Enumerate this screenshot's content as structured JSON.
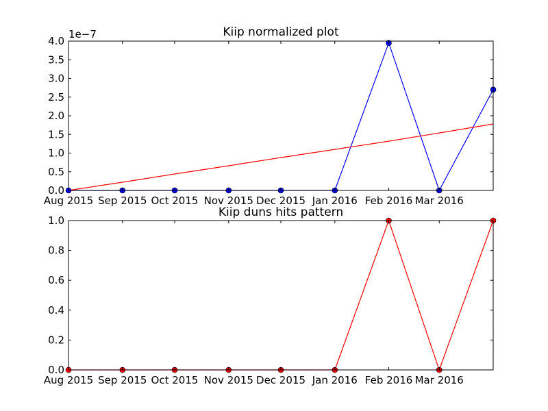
{
  "figure": {
    "background": "#ffffff"
  },
  "chart_data": [
    {
      "type": "line",
      "title": "Kiip normalized plot",
      "xlabel": "",
      "ylabel": "",
      "y_offset_text": "1e−7",
      "x_tick_labels": [
        "Aug 2015",
        "Sep 2015",
        "Oct 2015",
        "Nov 2015",
        "Dec 2015",
        "Jan 2016",
        "Feb 2016",
        "Mar 2016"
      ],
      "y_tick_labels": [
        "0.0",
        "0.5",
        "1.0",
        "1.5",
        "2.0",
        "2.5",
        "3.0",
        "3.5",
        "4.0"
      ],
      "y_tick_values": [
        0.0,
        0.5,
        1.0,
        1.5,
        2.0,
        2.5,
        3.0,
        3.5,
        4.0
      ],
      "ylim": [
        0.0,
        4.0
      ],
      "x": [
        "2015-08-01",
        "2015-09-01",
        "2015-10-01",
        "2015-11-01",
        "2015-12-01",
        "2016-01-01",
        "2016-02-01",
        "2016-03-01",
        "2016-04-01"
      ],
      "series": [
        {
          "values": [
            0.0,
            0.0,
            0.0,
            0.0,
            0.0,
            0.0,
            3.95,
            0.0,
            2.7
          ],
          "color": "#0000ff",
          "marker": "circle"
        },
        {
          "values": [
            0.0,
            0.22,
            0.44,
            0.66,
            0.88,
            1.1,
            1.32,
            1.54,
            1.78
          ],
          "color": "#ff0000",
          "marker": "none"
        }
      ],
      "grid": false
    },
    {
      "type": "line",
      "title": "Kiip duns hits pattern",
      "xlabel": "",
      "ylabel": "",
      "x_tick_labels": [
        "Aug 2015",
        "Sep 2015",
        "Oct 2015",
        "Nov 2015",
        "Dec 2015",
        "Jan 2016",
        "Feb 2016",
        "Mar 2016"
      ],
      "y_tick_labels": [
        "0.0",
        "0.2",
        "0.4",
        "0.6",
        "0.8",
        "1.0"
      ],
      "y_tick_values": [
        0.0,
        0.2,
        0.4,
        0.6,
        0.8,
        1.0
      ],
      "ylim": [
        0.0,
        1.0
      ],
      "x": [
        "2015-08-01",
        "2015-09-01",
        "2015-10-01",
        "2015-11-01",
        "2015-12-01",
        "2016-01-01",
        "2016-02-01",
        "2016-03-01",
        "2016-04-01"
      ],
      "series": [
        {
          "values": [
            0,
            0,
            0,
            0,
            0,
            0,
            1,
            0,
            1
          ],
          "color": "#ff0000",
          "marker": "circle"
        }
      ],
      "grid": false
    }
  ]
}
